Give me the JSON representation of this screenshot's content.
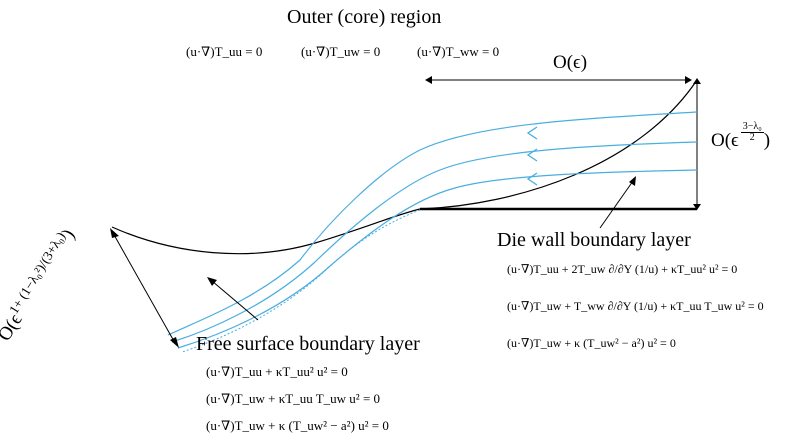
{
  "colors": {
    "streamline": "#4aaee0",
    "ink": "#000000",
    "background": "#ffffff"
  },
  "labels": {
    "outer_region": "Outer (core) region",
    "die_wall": "Die wall boundary layer",
    "free_surface": "Free surface boundary layer",
    "order_width": "O(ϵ)",
    "order_die_prefix": "O",
    "order_die_exponent_num": "3−λ₀",
    "order_die_exponent_den": "2",
    "order_free_prefix": "O",
    "order_free_exponent": "1+ (1−λ₀²)/(3+λ₀)"
  },
  "equations": {
    "outer": [
      "(u·∇)T_uu = 0",
      "(u·∇)T_uw = 0",
      "(u·∇)T_ww = 0"
    ],
    "die_wall": [
      "(u·∇)T_uu + 2T_uw ∂/∂Y (1/u) + κT_uu² u² = 0",
      "(u·∇)T_uw + T_ww ∂/∂Y (1/u) + κT_uu T_uw u² = 0",
      "(u·∇)T_uw + κ (T_uw² − a²) u² = 0"
    ],
    "free_surface": [
      "(u·∇)T_uu + κT_uu² u² = 0",
      "(u·∇)T_uw + κT_uu T_uw u² = 0",
      "(u·∇)T_uw + κ (T_uw² − a²) u² = 0"
    ]
  }
}
